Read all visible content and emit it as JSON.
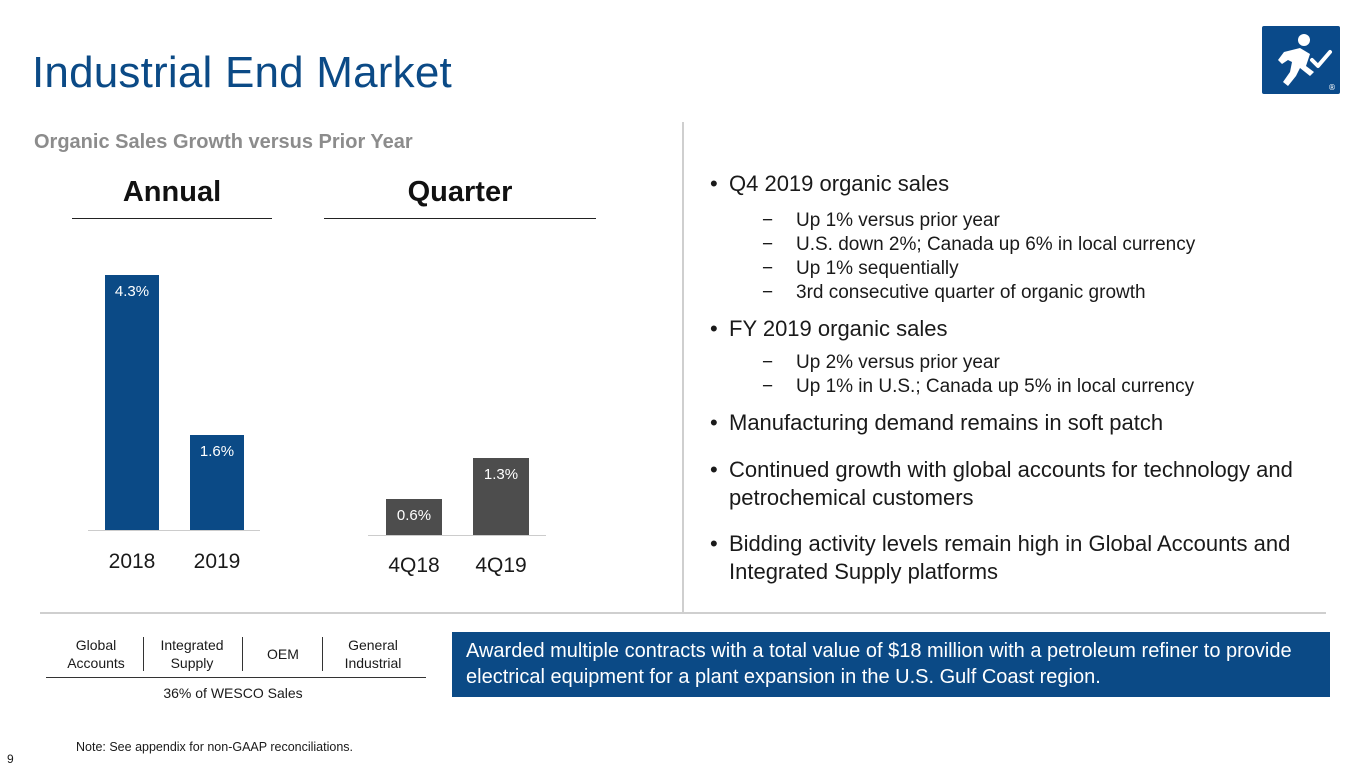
{
  "page": {
    "title": "Industrial End Market",
    "subtitle": "Organic Sales Growth versus Prior Year",
    "logo_icon": "running-person-checkmark-icon",
    "logo_mark": "®",
    "page_number": "9",
    "note": "Note: See appendix for non-GAAP reconciliations."
  },
  "chart_data": [
    {
      "type": "bar",
      "title": "Annual",
      "categories": [
        "2018",
        "2019"
      ],
      "values": [
        4.3,
        1.6
      ],
      "value_labels": [
        "4.3%",
        "1.6%"
      ],
      "color": "#0b4a86",
      "ylim": [
        0,
        5
      ]
    },
    {
      "type": "bar",
      "title": "Quarter",
      "categories": [
        "4Q18",
        "4Q19"
      ],
      "values": [
        0.6,
        1.3
      ],
      "value_labels": [
        "0.6%",
        "1.3%"
      ],
      "color": "#4d4d4d",
      "ylim": [
        0,
        5
      ]
    }
  ],
  "bullets": [
    {
      "text": "Q4 2019 organic sales",
      "sub": [
        "Up 1% versus prior year",
        "U.S. down 2%; Canada up 6% in local currency",
        "Up 1% sequentially",
        "3rd consecutive quarter of organic growth"
      ]
    },
    {
      "text": "FY 2019 organic sales",
      "sub": [
        "Up 2% versus prior year",
        "Up 1% in U.S.; Canada up 5% in local currency"
      ]
    },
    {
      "text": "Manufacturing demand remains in soft patch",
      "sub": []
    },
    {
      "text_line1": "Continued growth with global accounts for technology and",
      "text_line2": "petrochemical customers"
    },
    {
      "text_line1": "Bidding activity levels remain high in Global Accounts and",
      "text_line2": "Integrated Supply platforms"
    }
  ],
  "segments": {
    "items": [
      {
        "line1": "Global",
        "line2": "Accounts"
      },
      {
        "line1": "Integrated",
        "line2": "Supply"
      },
      {
        "line1": "OEM",
        "line2": ""
      },
      {
        "line1": "General",
        "line2": "Industrial"
      }
    ],
    "share_label": "36% of WESCO Sales"
  },
  "callout": {
    "text": "Awarded multiple contracts with a total value of $18 million with a petroleum refiner to provide electrical equipment for a plant expansion in the U.S. Gulf Coast region.",
    "color": "#0b4a86"
  },
  "symbols": {
    "bullet": "•",
    "dash": "−"
  }
}
